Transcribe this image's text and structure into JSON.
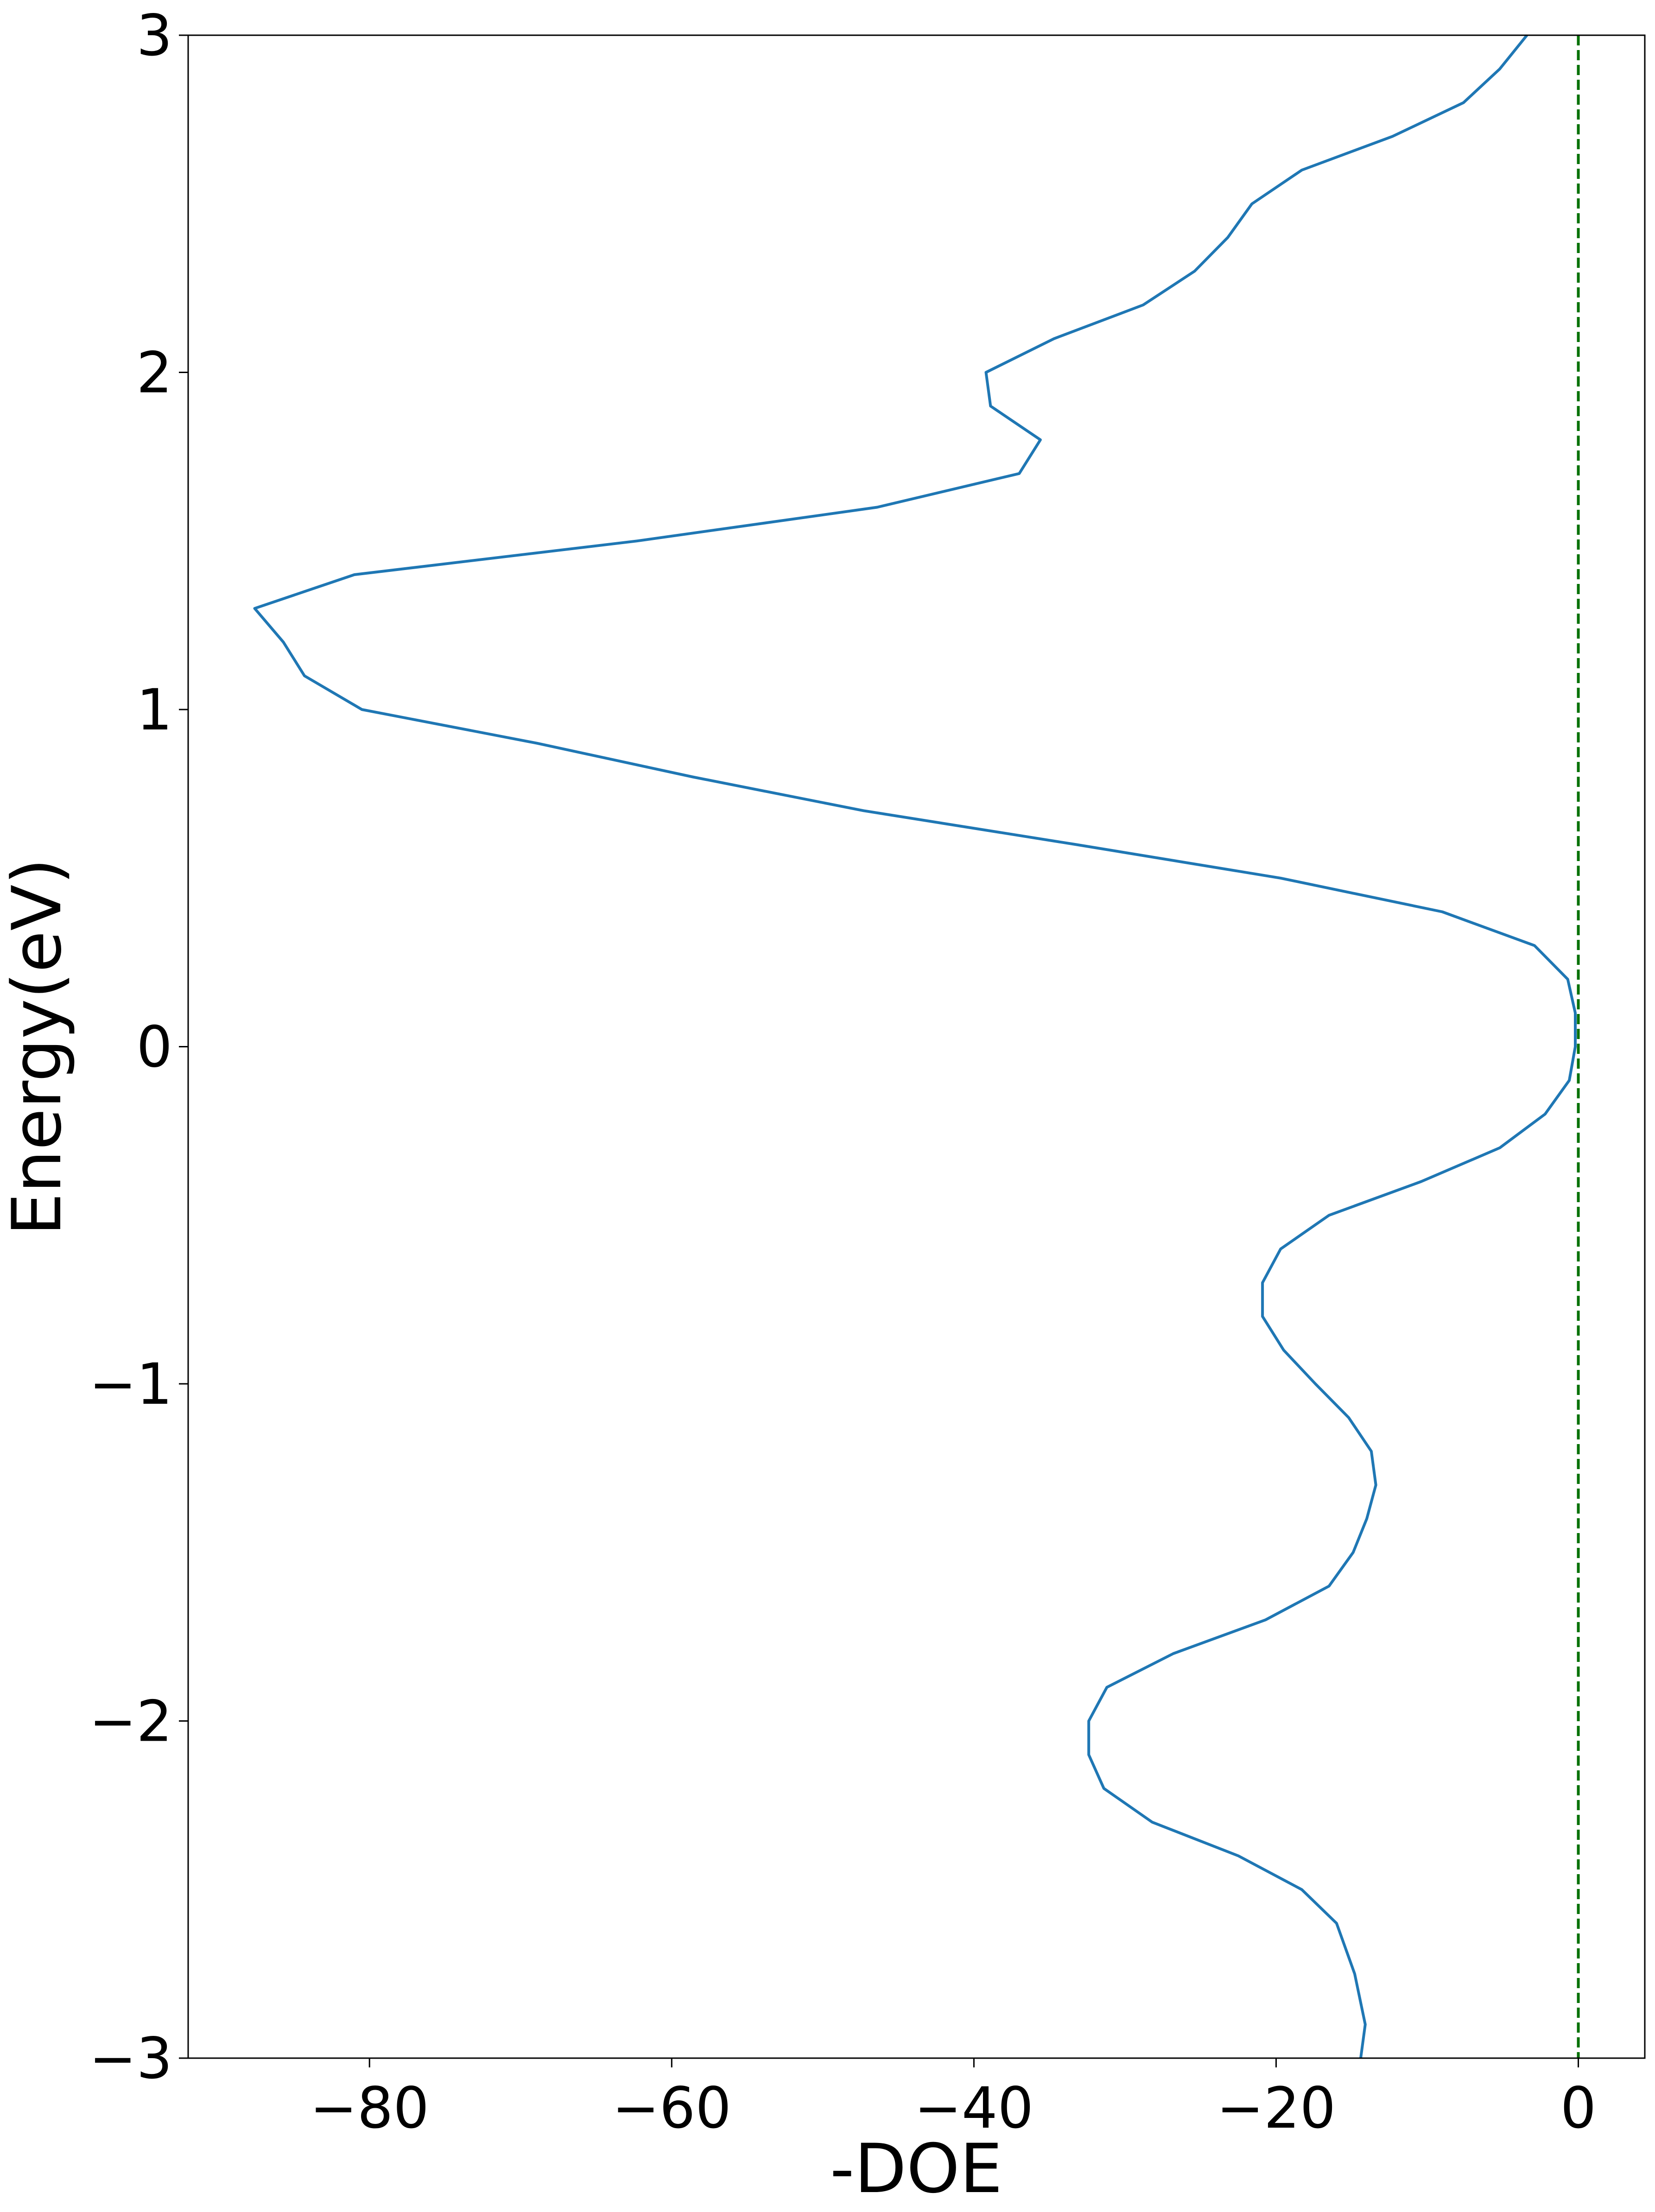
{
  "chart_data": {
    "type": "line",
    "x_label": "-DOE",
    "y_label": "Energy(eV)",
    "xlim": [
      -92,
      4.4
    ],
    "ylim": [
      -3,
      3
    ],
    "xticks": [
      {
        "value": -80,
        "label": "−80"
      },
      {
        "value": -60,
        "label": "−60"
      },
      {
        "value": -40,
        "label": "−40"
      },
      {
        "value": -20,
        "label": "−20"
      },
      0
    ],
    "yticks": [
      {
        "value": -3,
        "label": "−3"
      },
      {
        "value": -2,
        "label": "−2"
      },
      {
        "value": -1,
        "label": "−1"
      },
      0,
      1,
      2,
      3
    ],
    "vlines": [
      {
        "x": 0,
        "color": "#007000",
        "dashed": true
      }
    ],
    "series": [
      {
        "color": "#1f77b4",
        "y": [
          -3,
          -2.9,
          -2.75,
          -2.6,
          -2.5,
          -2.4,
          -2.3,
          -2.2,
          -2.1,
          -2.0,
          -1.9,
          -1.8,
          -1.7,
          -1.6,
          -1.5,
          -1.4,
          -1.3,
          -1.2,
          -1.1,
          -1.0,
          -0.9,
          -0.8,
          -0.7,
          -0.6,
          -0.5,
          -0.4,
          -0.3,
          -0.2,
          -0.1,
          0,
          0.1,
          0.2,
          0.3,
          0.4,
          0.5,
          0.6,
          0.7,
          0.8,
          0.9,
          1.0,
          1.1,
          1.2,
          1.3,
          1.4,
          1.5,
          1.6,
          1.7,
          1.8,
          1.9,
          2.0,
          2.1,
          2.2,
          2.3,
          2.4,
          2.5,
          2.6,
          2.7,
          2.8,
          2.9,
          3.0
        ],
        "values": [
          -14.4,
          -14.1,
          -14.8,
          -16.0,
          -18.3,
          -22.5,
          -28.2,
          -31.4,
          -32.4,
          -32.4,
          -31.2,
          -26.8,
          -20.7,
          -16.5,
          -14.9,
          -14.0,
          -13.4,
          -13.7,
          -15.2,
          -17.4,
          -19.5,
          -20.9,
          -20.9,
          -19.7,
          -16.5,
          -10.4,
          -5.2,
          -2.2,
          -0.6,
          -0.2,
          -0.2,
          -0.7,
          -2.9,
          -9.0,
          -19.7,
          -33.3,
          -47.3,
          -58.6,
          -68.9,
          -80.5,
          -84.3,
          -85.7,
          -87.6,
          -81.0,
          -62.3,
          -46.4,
          -37.0,
          -35.6,
          -38.9,
          -39.2,
          -34.7,
          -28.8,
          -25.4,
          -23.2,
          -21.6,
          -18.3,
          -12.3,
          -7.6,
          -5.2,
          -3.4
        ]
      }
    ]
  }
}
